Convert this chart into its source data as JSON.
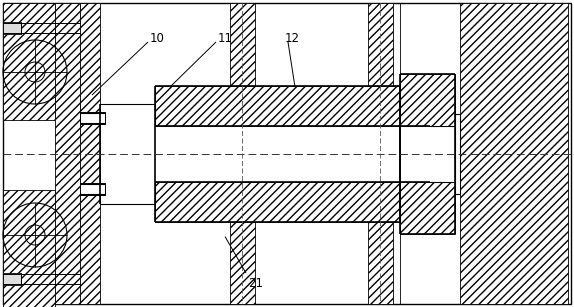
{
  "bg_color": "#ffffff",
  "line_color": "#000000",
  "fig_width": 5.74,
  "fig_height": 3.07,
  "dpi": 100
}
